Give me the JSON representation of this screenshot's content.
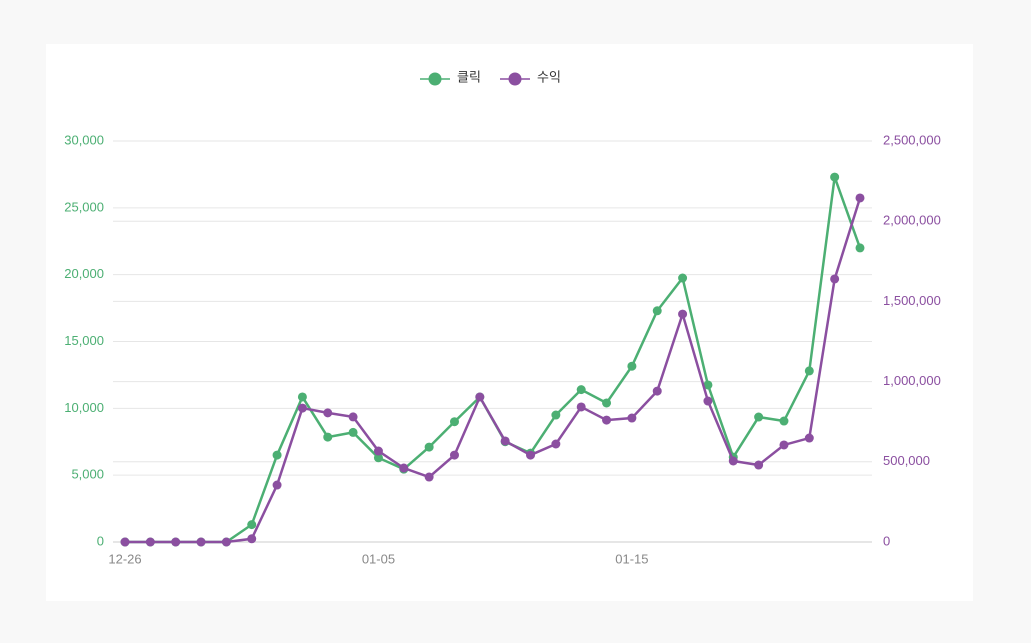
{
  "chart_data": {
    "type": "line",
    "categories": [
      "12-26",
      null,
      null,
      null,
      null,
      null,
      null,
      null,
      null,
      null,
      "01-05",
      null,
      null,
      null,
      null,
      null,
      null,
      null,
      null,
      null,
      "01-15",
      null,
      null,
      null,
      null,
      null,
      null,
      null,
      null,
      null
    ],
    "series": [
      {
        "name": "클릭",
        "color": "#4caf73",
        "axis": "y",
        "values": [
          0,
          0,
          0,
          0,
          0,
          1300,
          6500,
          10850,
          7850,
          8200,
          6300,
          5450,
          7100,
          9000,
          10850,
          7500,
          6650,
          9500,
          11400,
          10400,
          13150,
          17300,
          19750,
          11750,
          6350,
          9350,
          9050,
          12800,
          27300,
          22000
        ]
      },
      {
        "name": "수익",
        "color": "#8b4fa0",
        "axis": "y2",
        "values": [
          0,
          0,
          0,
          0,
          0,
          20000,
          355000,
          835000,
          805000,
          780000,
          567000,
          461000,
          405000,
          542000,
          904000,
          630000,
          542000,
          611000,
          842000,
          760000,
          773000,
          941000,
          1421000,
          879000,
          505000,
          480000,
          605000,
          648000,
          1640000,
          2145000
        ]
      }
    ],
    "ylim": [
      0,
      30000
    ],
    "yticks": [
      0,
      {
        "value": 5000,
        "label": "5,000"
      },
      {
        "value": 10000,
        "label": "10,000"
      },
      {
        "value": 15000,
        "label": "15,000"
      },
      {
        "value": 20000,
        "label": "20,000"
      },
      {
        "value": 25000,
        "label": "25,000"
      },
      {
        "value": 30000,
        "label": "30,000"
      }
    ],
    "y2lim": [
      0,
      2500000
    ],
    "y2ticks": [
      0,
      {
        "value": 500000,
        "label": "500,000"
      },
      {
        "value": 1000000,
        "label": "1,000,000"
      },
      {
        "value": 1500000,
        "label": "1,500,000"
      },
      {
        "value": 2000000,
        "label": "2,000,000"
      },
      {
        "value": 2500000,
        "label": "2,500,000"
      }
    ],
    "grid": true,
    "legend": "top"
  }
}
